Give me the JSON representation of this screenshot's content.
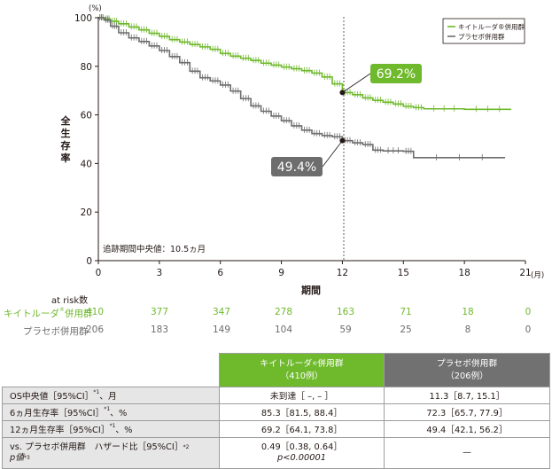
{
  "chart_data": {
    "type": "line",
    "title": "",
    "ylabel": "全生存率",
    "y_unit": "(%)",
    "xlabel": "期間",
    "x_unit": "(月)",
    "xlim": [
      0,
      21
    ],
    "ylim": [
      0,
      100
    ],
    "x_ticks": [
      "0",
      "3",
      "6",
      "9",
      "12",
      "15",
      "18",
      "21"
    ],
    "y_ticks": [
      "0",
      "20",
      "40",
      "60",
      "80",
      "100"
    ],
    "legend_position": "top-right",
    "series": [
      {
        "name": "キイトルーダ®併用群",
        "color": "#6fb92c",
        "points": [
          [
            0,
            100
          ],
          [
            0.3,
            99.5
          ],
          [
            0.6,
            98.5
          ],
          [
            1,
            97.5
          ],
          [
            1.5,
            96.2
          ],
          [
            2,
            95
          ],
          [
            2.5,
            93.6
          ],
          [
            3,
            92.3
          ],
          [
            3.5,
            91
          ],
          [
            4,
            90
          ],
          [
            4.5,
            89
          ],
          [
            5,
            88
          ],
          [
            5.5,
            87
          ],
          [
            6,
            85.3
          ],
          [
            6.5,
            84.2
          ],
          [
            7,
            83.3
          ],
          [
            7.5,
            82.4
          ],
          [
            8,
            81.3
          ],
          [
            8.5,
            80.5
          ],
          [
            9,
            79.7
          ],
          [
            9.5,
            79
          ],
          [
            10,
            78.2
          ],
          [
            10.5,
            77.2
          ],
          [
            11,
            75.6
          ],
          [
            11.5,
            72.8
          ],
          [
            12,
            69.2
          ],
          [
            12.5,
            68.3
          ],
          [
            13,
            67
          ],
          [
            13.5,
            66
          ],
          [
            14,
            65.2
          ],
          [
            14.5,
            64.5
          ],
          [
            15,
            63.5
          ],
          [
            15.5,
            63
          ],
          [
            16,
            62.5
          ],
          [
            18,
            62.3
          ],
          [
            20.3,
            62.3
          ]
        ]
      },
      {
        "name": "プラセボ併用群",
        "color": "#6d6d6d",
        "points": [
          [
            0,
            100
          ],
          [
            0.3,
            99
          ],
          [
            0.6,
            96.5
          ],
          [
            1,
            93.8
          ],
          [
            1.5,
            91.7
          ],
          [
            2,
            90.2
          ],
          [
            2.5,
            88.4
          ],
          [
            3,
            86.5
          ],
          [
            3.5,
            84
          ],
          [
            4,
            81.5
          ],
          [
            4.5,
            78
          ],
          [
            5,
            75.3
          ],
          [
            5.5,
            74
          ],
          [
            6,
            72.3
          ],
          [
            6.5,
            69.8
          ],
          [
            7,
            66.7
          ],
          [
            7.5,
            63.7
          ],
          [
            8,
            61.5
          ],
          [
            8.5,
            59.5
          ],
          [
            9,
            57.6
          ],
          [
            9.5,
            55.5
          ],
          [
            10,
            53.7
          ],
          [
            10.5,
            52.3
          ],
          [
            11,
            51.5
          ],
          [
            11.5,
            51
          ],
          [
            12,
            49.4
          ],
          [
            12.5,
            48.5
          ],
          [
            13,
            47.8
          ],
          [
            13.5,
            45.5
          ],
          [
            14,
            45.2
          ],
          [
            15,
            45
          ],
          [
            15.5,
            42.4
          ],
          [
            20,
            42.4
          ]
        ]
      }
    ],
    "annotations": [
      {
        "x": 12,
        "y": 69.2,
        "label": "69.2%",
        "series": "キイトルーダ®併用群"
      },
      {
        "x": 12,
        "y": 49.4,
        "label": "49.4%",
        "series": "プラセボ併用群"
      }
    ],
    "reference_line_x": 12,
    "note": "追跡期間中央値：10.5ヵ月"
  },
  "risk_table": {
    "title": "at risk数",
    "rows": [
      {
        "label": "キイトルーダ",
        "sup": "®",
        "label_suffix": "併用群",
        "values": [
          "410",
          "377",
          "347",
          "278",
          "163",
          "71",
          "18",
          "0"
        ]
      },
      {
        "label": "プラセボ併用群",
        "values": [
          "206",
          "183",
          "149",
          "104",
          "59",
          "25",
          "8",
          "0"
        ]
      }
    ]
  },
  "summary_table": {
    "headers": [
      {
        "name": "キイトルーダ",
        "sup": "®",
        "suffix": "併用群",
        "n": "（410例）"
      },
      {
        "name": "プラセボ併用群",
        "n": "（206例）"
      }
    ],
    "rows": [
      {
        "label": "OS中央値［95%CI］",
        "sup": "*1",
        "suffix": "、月",
        "v1": "未到達［ –, – ］",
        "v2": "11.3［8.7, 15.1］"
      },
      {
        "label": "6ヵ月生存率［95%CI］",
        "sup": "*1",
        "suffix": "、%",
        "v1": "85.3［81.5, 88.4］",
        "v2": "72.3［65.7, 77.9］"
      },
      {
        "label": "12ヵ月生存率［95%CI］",
        "sup": "*1",
        "suffix": "、%",
        "v1": "69.2［64.1, 73.8］",
        "v2": "49.4［42.1, 56.2］"
      }
    ],
    "last_row": {
      "label_line1": "vs. プラセボ併用群　ハザード比［95%CI］",
      "sup1": "*2",
      "label_line2": "p値",
      "sup2": "*3",
      "v1_line1": "0.49［0.38, 0.64］",
      "v1_line2": "p<0.00001",
      "v2": "—"
    }
  }
}
